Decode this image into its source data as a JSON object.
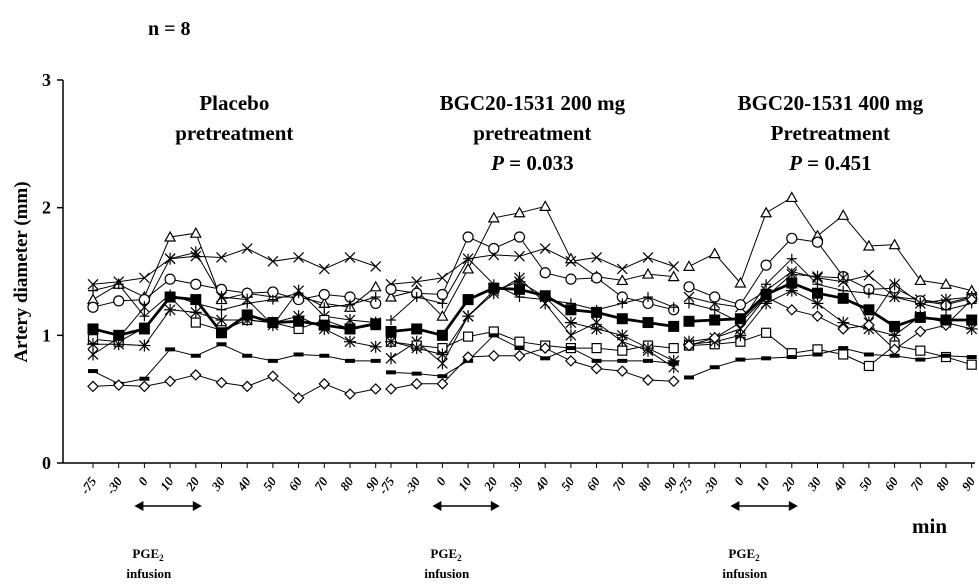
{
  "chart_data": {
    "type": "line",
    "top_label": "n = 8",
    "ylabel": "Artery diameter (mm)",
    "xlabel_unit": "min",
    "ylim": [
      0,
      3
    ],
    "y_ticks": [
      "0",
      "1",
      "2",
      "3"
    ],
    "x_ticks": [
      "-75",
      "-30",
      "0",
      "10",
      "20",
      "30",
      "40",
      "50",
      "60",
      "70",
      "80",
      "90"
    ],
    "marker_note": "PGE₂ infusion",
    "panels": [
      {
        "title_lines": [
          "Placebo",
          "pretreatment"
        ],
        "pvalue": "",
        "infusion_label_lines": [
          "PGE₂",
          "infusion"
        ],
        "series": [
          {
            "marker": "triangle",
            "values": [
              1.28,
              1.4,
              1.3,
              1.77,
              1.8,
              1.28,
              1.33,
              1.3,
              1.3,
              1.25,
              1.22,
              1.38
            ]
          },
          {
            "marker": "x",
            "values": [
              1.4,
              1.42,
              1.45,
              1.6,
              1.62,
              1.61,
              1.68,
              1.58,
              1.61,
              1.52,
              1.61,
              1.54
            ]
          },
          {
            "marker": "circle",
            "values": [
              1.22,
              1.27,
              1.28,
              1.44,
              1.4,
              1.36,
              1.33,
              1.34,
              1.28,
              1.32,
              1.3,
              1.25
            ]
          },
          {
            "marker": "plus",
            "values": [
              1.35,
              1.4,
              1.15,
              1.32,
              1.25,
              1.2,
              1.25,
              1.28,
              1.33,
              1.22,
              1.24,
              1.3
            ]
          },
          {
            "marker": "asterisk",
            "values": [
              0.85,
              0.98,
              1.22,
              1.6,
              1.65,
              1.3,
              1.28,
              1.08,
              1.35,
              1.15,
              1.12,
              1.1
            ]
          },
          {
            "marker": "square",
            "values": [
              0.97,
              0.95,
              1.06,
              1.3,
              1.1,
              1.04,
              1.12,
              1.1,
              1.05,
              1.12,
              1.05,
              1.08
            ]
          },
          {
            "marker": "star",
            "values": [
              0.93,
              0.93,
              0.92,
              1.2,
              1.18,
              1.12,
              1.12,
              1.1,
              1.15,
              1.05,
              0.95,
              0.91
            ]
          },
          {
            "marker": "dash",
            "values": [
              0.72,
              0.62,
              0.66,
              0.89,
              0.84,
              0.93,
              0.84,
              0.8,
              0.85,
              0.84,
              0.8,
              0.8
            ]
          },
          {
            "marker": "diamond",
            "values": [
              0.6,
              0.61,
              0.6,
              0.64,
              0.69,
              0.63,
              0.6,
              0.68,
              0.51,
              0.62,
              0.54,
              0.58
            ]
          },
          {
            "marker": "mean",
            "values": [
              1.05,
              1.0,
              1.05,
              1.3,
              1.28,
              1.02,
              1.16,
              1.1,
              1.11,
              1.08,
              1.05,
              1.09
            ]
          }
        ]
      },
      {
        "title_lines": [
          "BGC20-1531 200 mg",
          "pretreatment"
        ],
        "pvalue": "0.033",
        "infusion_label_lines": [
          "PGE₂",
          "infusion"
        ],
        "series": [
          {
            "marker": "triangle",
            "values": [
              1.3,
              1.35,
              1.15,
              1.52,
              1.92,
              1.96,
              2.01,
              1.6,
              1.46,
              1.43,
              1.48,
              1.46
            ]
          },
          {
            "marker": "x",
            "values": [
              1.4,
              1.42,
              1.45,
              1.6,
              1.63,
              1.62,
              1.68,
              1.58,
              1.61,
              1.52,
              1.61,
              1.54
            ]
          },
          {
            "marker": "circle",
            "values": [
              1.36,
              1.33,
              1.32,
              1.77,
              1.68,
              1.77,
              1.49,
              1.44,
              1.45,
              1.3,
              1.25,
              1.2
            ]
          },
          {
            "marker": "plus",
            "values": [
              1.12,
              1.3,
              1.25,
              1.6,
              1.4,
              1.3,
              1.28,
              1.25,
              1.2,
              1.25,
              1.3,
              1.22
            ]
          },
          {
            "marker": "asterisk",
            "values": [
              0.82,
              0.95,
              0.78,
              1.15,
              1.33,
              1.45,
              1.25,
              1.0,
              1.1,
              0.95,
              0.88,
              0.75
            ]
          },
          {
            "marker": "square",
            "values": [
              0.95,
              0.92,
              0.9,
              0.99,
              1.03,
              0.95,
              0.92,
              0.9,
              0.9,
              0.88,
              0.92,
              0.9
            ]
          },
          {
            "marker": "star",
            "values": [
              0.95,
              0.9,
              0.85,
              1.15,
              1.35,
              1.42,
              1.3,
              1.1,
              1.05,
              1.0,
              0.9,
              0.8
            ]
          },
          {
            "marker": "dash",
            "values": [
              0.71,
              0.7,
              0.68,
              0.8,
              1.0,
              0.9,
              0.82,
              0.9,
              0.8,
              0.8,
              0.8,
              0.78
            ]
          },
          {
            "marker": "diamond",
            "values": [
              0.58,
              0.62,
              0.62,
              0.83,
              0.84,
              0.84,
              0.9,
              0.8,
              0.74,
              0.72,
              0.65,
              0.64
            ]
          },
          {
            "marker": "mean",
            "values": [
              1.03,
              1.05,
              1.0,
              1.28,
              1.37,
              1.36,
              1.31,
              1.2,
              1.18,
              1.13,
              1.1,
              1.07
            ]
          }
        ]
      },
      {
        "title_lines": [
          "BGC20-1531 400 mg",
          "Pretreatment"
        ],
        "pvalue": "0.451",
        "infusion_label_lines": [
          "PGE₂",
          "infusion"
        ],
        "series": [
          {
            "marker": "triangle",
            "values": [
              1.54,
              1.64,
              1.41,
              1.96,
              2.08,
              1.78,
              1.94,
              1.7,
              1.71,
              1.43,
              1.4,
              1.35
            ]
          },
          {
            "marker": "x",
            "values": [
              1.3,
              1.25,
              1.22,
              1.35,
              1.5,
              1.45,
              1.42,
              1.47,
              1.3,
              1.28,
              1.25,
              1.3
            ]
          },
          {
            "marker": "circle",
            "values": [
              1.38,
              1.3,
              1.24,
              1.55,
              1.76,
              1.73,
              1.46,
              1.36,
              1.37,
              1.27,
              1.24,
              1.29
            ]
          },
          {
            "marker": "plus",
            "values": [
              1.25,
              1.2,
              1.1,
              1.4,
              1.6,
              1.4,
              1.35,
              1.33,
              1.3,
              1.25,
              1.2,
              1.25
            ]
          },
          {
            "marker": "asterisk",
            "values": [
              0.95,
              0.98,
              1.05,
              1.3,
              1.48,
              1.46,
              1.45,
              1.1,
              1.4,
              1.25,
              1.28,
              1.3
            ]
          },
          {
            "marker": "square",
            "values": [
              0.92,
              0.93,
              0.95,
              1.02,
              0.86,
              0.89,
              0.85,
              0.76,
              0.92,
              0.88,
              0.83,
              0.77
            ]
          },
          {
            "marker": "star",
            "values": [
              0.93,
              0.95,
              1.0,
              1.25,
              1.35,
              1.25,
              1.1,
              1.05,
              1.0,
              1.15,
              1.1,
              1.05
            ]
          },
          {
            "marker": "dash",
            "values": [
              0.67,
              0.75,
              0.81,
              0.82,
              0.83,
              0.85,
              0.9,
              0.85,
              0.84,
              0.81,
              0.84,
              0.83
            ]
          },
          {
            "marker": "diamond",
            "values": [
              0.92,
              0.98,
              1.1,
              1.3,
              1.2,
              1.15,
              1.05,
              1.08,
              0.89,
              1.03,
              1.08,
              1.28
            ]
          },
          {
            "marker": "mean",
            "values": [
              1.11,
              1.12,
              1.13,
              1.32,
              1.41,
              1.33,
              1.29,
              1.2,
              1.07,
              1.14,
              1.12,
              1.12
            ]
          }
        ]
      }
    ]
  }
}
